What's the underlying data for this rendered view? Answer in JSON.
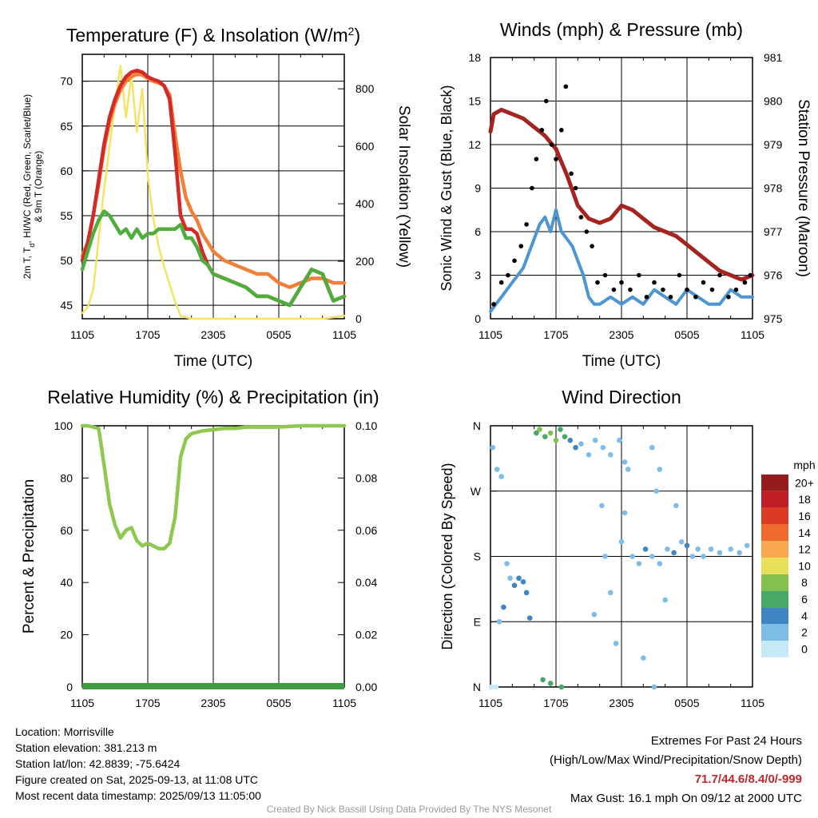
{
  "chart_data": [
    {
      "type": "line",
      "title": "Temperature (F) & Insolation (W/m2)",
      "xlabel": "Time (UTC)",
      "ylabel": "2m T, Td, HI/WC (Red, Green, Scarlet/Blue) & 9m T (Orange)",
      "y2label": "Solar Insolation (Yellow)",
      "x_ticks": [
        "1105",
        "1705",
        "2305",
        "0505",
        "1105"
      ],
      "y_ticks": [
        45,
        50,
        55,
        60,
        65,
        70
      ],
      "y2_ticks": [
        0,
        200,
        400,
        600,
        800
      ],
      "ylim": [
        43.5,
        73
      ],
      "y2lim": [
        0,
        920
      ],
      "x_hours": [
        0,
        24
      ],
      "series": [
        {
          "name": "2m T",
          "axis": "left",
          "color": "#d42a27",
          "x": [
            0,
            0.5,
            1,
            1.5,
            2,
            2.5,
            3,
            3.5,
            4,
            4.5,
            5,
            5.5,
            6,
            6.5,
            7,
            7.5,
            8,
            8.5,
            9,
            9.5,
            10,
            10.5,
            11,
            11.5,
            12,
            13,
            14,
            15,
            16,
            17,
            18,
            19,
            20,
            21,
            22,
            23,
            24
          ],
          "y": [
            50,
            52,
            55,
            59,
            63,
            66,
            68,
            69.5,
            70.5,
            71,
            71.2,
            71,
            70.5,
            70.2,
            70,
            69.5,
            68,
            62,
            55,
            53.5,
            53.5,
            53,
            51,
            49.5,
            48.5,
            48,
            47.5,
            47,
            46,
            46,
            45.5,
            45,
            47,
            49,
            48.5,
            45.5,
            46
          ]
        },
        {
          "name": "9m T",
          "axis": "left",
          "color": "#f07f3a",
          "x": [
            0,
            0.5,
            1,
            1.5,
            2,
            2.5,
            3,
            3.5,
            4,
            4.5,
            5,
            5.5,
            6,
            6.5,
            7,
            7.5,
            8,
            8.5,
            9,
            9.5,
            10,
            10.5,
            11,
            11.5,
            12,
            13,
            14,
            15,
            16,
            17,
            18,
            19,
            20,
            21,
            22,
            23,
            24
          ],
          "y": [
            50.5,
            52,
            55,
            58.5,
            62.5,
            65.5,
            67.5,
            69,
            70,
            70.5,
            70.8,
            70.7,
            70.3,
            70,
            69.8,
            69.5,
            68.5,
            64,
            60,
            57,
            55.5,
            54.5,
            53,
            52,
            51,
            50,
            49.5,
            49,
            48.5,
            48.5,
            47.5,
            47,
            47.5,
            48,
            48,
            47.5,
            47.5
          ]
        },
        {
          "name": "Td",
          "axis": "left",
          "color": "#4ead3c",
          "x": [
            0,
            0.5,
            1,
            1.5,
            2,
            2.5,
            3,
            3.5,
            4,
            4.5,
            5,
            5.5,
            6,
            6.5,
            7,
            7.5,
            8,
            8.5,
            9,
            9.5,
            10,
            10.5,
            11,
            11.5,
            12,
            13,
            14,
            15,
            16,
            17,
            18,
            19,
            20,
            21,
            22,
            23,
            24
          ],
          "y": [
            49,
            51,
            53,
            54.5,
            55.5,
            55,
            54,
            53,
            53.5,
            52.5,
            53.5,
            52.5,
            53,
            53,
            53.5,
            53.5,
            53.5,
            53.5,
            54,
            52.5,
            52.5,
            51.5,
            50,
            49.5,
            48.5,
            48,
            47.5,
            47,
            46,
            46,
            45.5,
            45,
            47,
            49,
            48.5,
            45.5,
            46
          ]
        },
        {
          "name": "Solar Insolation",
          "axis": "right",
          "color": "#f6e265",
          "x": [
            0,
            0.5,
            1,
            1.5,
            2,
            2.5,
            3,
            3.5,
            4,
            4.5,
            5,
            5.5,
            6,
            6.5,
            7,
            7.5,
            8,
            8.5,
            9,
            10,
            12,
            14,
            16,
            18,
            20,
            22,
            24
          ],
          "y": [
            20,
            40,
            100,
            280,
            450,
            600,
            750,
            880,
            700,
            850,
            650,
            800,
            500,
            350,
            250,
            180,
            120,
            60,
            10,
            0,
            0,
            0,
            0,
            0,
            0,
            0,
            10
          ]
        }
      ]
    },
    {
      "type": "scatter",
      "title": "Winds (mph) & Pressure (mb)",
      "xlabel": "Time (UTC)",
      "ylabel": "Sonic Wind & Gust (Blue, Black)",
      "y2label": "Station Pressure (Maroon)",
      "x_ticks": [
        "1105",
        "1705",
        "2305",
        "0505",
        "1105"
      ],
      "y_ticks": [
        0,
        3,
        6,
        9,
        12,
        15,
        18
      ],
      "y2_ticks": [
        975,
        976,
        977,
        978,
        979,
        980,
        981
      ],
      "ylim": [
        0,
        18
      ],
      "y2lim": [
        975,
        981
      ],
      "x_hours": [
        0,
        24
      ],
      "series": [
        {
          "name": "Sonic Wind",
          "axis": "left",
          "color": "#4d96d1",
          "x": [
            0,
            0.5,
            1,
            1.5,
            2,
            2.5,
            3,
            3.5,
            4,
            4.5,
            5,
            5.5,
            6,
            6.5,
            7,
            7.5,
            8,
            8.5,
            9,
            9.5,
            10,
            11,
            12,
            13,
            14,
            15,
            16,
            17,
            18,
            19,
            20,
            21,
            22,
            23,
            24
          ],
          "y": [
            0.5,
            1,
            1.5,
            2,
            2.5,
            3,
            3.5,
            4.5,
            5.5,
            6.5,
            7,
            6,
            7.5,
            6,
            5.5,
            5,
            4,
            3,
            1.5,
            1,
            1,
            1.5,
            1,
            1.5,
            1,
            2,
            1.5,
            1,
            2,
            1.5,
            1,
            1,
            2,
            1.5,
            1.5
          ]
        },
        {
          "name": "Gust",
          "axis": "left",
          "color": "#000000",
          "x": [
            0.3,
            1,
            1.6,
            2.2,
            2.8,
            3.3,
            3.8,
            4.2,
            4.7,
            5.1,
            5.6,
            6,
            6.5,
            6.9,
            7.4,
            7.8,
            8.3,
            8.8,
            9.3,
            9.8,
            10.5,
            11.3,
            12,
            12.8,
            13.6,
            14.3,
            15,
            15.8,
            16.5,
            17.3,
            18,
            18.8,
            19.5,
            20.3,
            21,
            21.8,
            22.5,
            23.3,
            23.8
          ],
          "y": [
            1,
            2.5,
            3,
            4,
            5,
            6.5,
            9,
            11,
            13,
            15,
            12,
            11,
            13,
            16,
            10,
            9,
            7,
            6,
            5,
            2.5,
            3,
            2,
            2.5,
            2,
            3,
            1.5,
            2.5,
            2,
            1.5,
            3,
            2,
            1.5,
            2.5,
            2,
            3,
            1.5,
            2,
            2.5,
            3
          ]
        },
        {
          "name": "Station Pressure",
          "axis": "right",
          "color": "#a52422",
          "x": [
            0,
            0.3,
            1,
            2,
            3,
            4,
            5,
            6,
            7,
            8,
            9,
            10,
            11,
            12,
            13,
            14,
            15,
            16,
            17,
            18,
            19,
            20,
            21,
            22,
            23,
            24
          ],
          "y": [
            979.3,
            979.7,
            979.8,
            979.7,
            979.6,
            979.4,
            979.2,
            978.9,
            978.3,
            977.6,
            977.3,
            977.2,
            977.3,
            977.6,
            977.5,
            977.3,
            977.1,
            977,
            976.9,
            976.7,
            976.5,
            976.3,
            976.1,
            976,
            975.9,
            976
          ]
        }
      ]
    },
    {
      "type": "line",
      "title": "Relative Humidity (%) & Precipitation (in)",
      "xlabel": "",
      "ylabel": "Percent & Precipitation",
      "x_ticks": [
        "1105",
        "1705",
        "2305",
        "0505",
        "1105"
      ],
      "y_ticks": [
        0,
        20,
        40,
        60,
        80,
        100
      ],
      "y2_ticks": [
        "0.00",
        "0.02",
        "0.04",
        "0.06",
        "0.08",
        "0.10"
      ],
      "ylim": [
        0,
        100
      ],
      "y2lim": [
        0,
        0.1
      ],
      "x_hours": [
        0,
        24
      ],
      "series": [
        {
          "name": "Relative Humidity",
          "axis": "left",
          "color": "#8ec84f",
          "x": [
            0,
            0.5,
            1.5,
            2,
            2.5,
            3,
            3.5,
            4,
            4.5,
            5,
            5.5,
            6,
            6.5,
            7,
            7.5,
            8,
            8.5,
            9,
            9.5,
            10,
            11,
            12,
            13,
            14,
            15,
            16,
            18,
            20,
            22,
            24
          ],
          "y": [
            100,
            100,
            99,
            85,
            70,
            62,
            57,
            60,
            61,
            56,
            54,
            55,
            54,
            53,
            53,
            55,
            65,
            88,
            95,
            97,
            98,
            98.5,
            99,
            99,
            99.5,
            99.5,
            99.5,
            100,
            100,
            100
          ]
        },
        {
          "name": "Precipitation",
          "axis": "right",
          "color": "#3f9c41",
          "x": [
            0,
            24
          ],
          "y": [
            0,
            0
          ]
        }
      ]
    },
    {
      "type": "scatter",
      "title": "Wind Direction",
      "ylabel": "Direction (Colored By Speed)",
      "x_ticks": [
        "1105",
        "1705",
        "2305",
        "0505",
        "1105"
      ],
      "y_ticks": [
        "N",
        "E",
        "S",
        "W",
        "N"
      ],
      "ylim": [
        0,
        360
      ],
      "x_hours": [
        0,
        24
      ],
      "colorbar_title": "mph",
      "colorbar_labels": [
        "0",
        "2",
        "4",
        "6",
        "8",
        "10",
        "12",
        "14",
        "16",
        "18",
        "20+"
      ],
      "colorbar_colors": [
        "#c6e9f8",
        "#7ebde6",
        "#3f84c3",
        "#47a867",
        "#83c24f",
        "#e8e05a",
        "#f8a84e",
        "#f06a2d",
        "#dd3a26",
        "#bf1f24",
        "#951b1c"
      ],
      "points": [
        {
          "x": 0.1,
          "y": 0,
          "speed": 0.5
        },
        {
          "x": 0.5,
          "y": 0,
          "speed": 0.5
        },
        {
          "x": 0.2,
          "y": 330,
          "speed": 1
        },
        {
          "x": 0.6,
          "y": 300,
          "speed": 1
        },
        {
          "x": 1,
          "y": 290,
          "speed": 1
        },
        {
          "x": 1.5,
          "y": 170,
          "speed": 2
        },
        {
          "x": 1.8,
          "y": 150,
          "speed": 2
        },
        {
          "x": 2.2,
          "y": 140,
          "speed": 3
        },
        {
          "x": 2.6,
          "y": 150,
          "speed": 3
        },
        {
          "x": 3,
          "y": 145,
          "speed": 3
        },
        {
          "x": 3.3,
          "y": 130,
          "speed": 4
        },
        {
          "x": 1.2,
          "y": 110,
          "speed": 3
        },
        {
          "x": 0.8,
          "y": 90,
          "speed": 2
        },
        {
          "x": 3.6,
          "y": 95,
          "speed": 4
        },
        {
          "x": 4.2,
          "y": 350,
          "speed": 5
        },
        {
          "x": 4.5,
          "y": 355,
          "speed": 7
        },
        {
          "x": 5,
          "y": 345,
          "speed": 6
        },
        {
          "x": 5.5,
          "y": 350,
          "speed": 8
        },
        {
          "x": 6,
          "y": 340,
          "speed": 7
        },
        {
          "x": 6.4,
          "y": 355,
          "speed": 6
        },
        {
          "x": 6.8,
          "y": 345,
          "speed": 5
        },
        {
          "x": 7.3,
          "y": 340,
          "speed": 4
        },
        {
          "x": 7.8,
          "y": 330,
          "speed": 3
        },
        {
          "x": 8.3,
          "y": 335,
          "speed": 2
        },
        {
          "x": 9,
          "y": 320,
          "speed": 1
        },
        {
          "x": 9.6,
          "y": 340,
          "speed": 1
        },
        {
          "x": 10.3,
          "y": 330,
          "speed": 1
        },
        {
          "x": 11,
          "y": 320,
          "speed": 1
        },
        {
          "x": 11.8,
          "y": 340,
          "speed": 1
        },
        {
          "x": 12.3,
          "y": 310,
          "speed": 1
        },
        {
          "x": 12.6,
          "y": 300,
          "speed": 1
        },
        {
          "x": 4.8,
          "y": 10,
          "speed": 5
        },
        {
          "x": 5.5,
          "y": 5,
          "speed": 5
        },
        {
          "x": 6.5,
          "y": 0,
          "speed": 6
        },
        {
          "x": 9.5,
          "y": 100,
          "speed": 1
        },
        {
          "x": 10.2,
          "y": 250,
          "speed": 1
        },
        {
          "x": 10.5,
          "y": 180,
          "speed": 1
        },
        {
          "x": 11,
          "y": 130,
          "speed": 1
        },
        {
          "x": 11.5,
          "y": 60,
          "speed": 1
        },
        {
          "x": 12,
          "y": 200,
          "speed": 1
        },
        {
          "x": 12.3,
          "y": 240,
          "speed": 1
        },
        {
          "x": 13,
          "y": 180,
          "speed": 2
        },
        {
          "x": 13.6,
          "y": 170,
          "speed": 2
        },
        {
          "x": 14.2,
          "y": 190,
          "speed": 3
        },
        {
          "x": 14.8,
          "y": 180,
          "speed": 2
        },
        {
          "x": 15.5,
          "y": 170,
          "speed": 2
        },
        {
          "x": 16.2,
          "y": 190,
          "speed": 2
        },
        {
          "x": 16.8,
          "y": 185,
          "speed": 3
        },
        {
          "x": 17.5,
          "y": 200,
          "speed": 2
        },
        {
          "x": 18,
          "y": 195,
          "speed": 3
        },
        {
          "x": 18.5,
          "y": 180,
          "speed": 2
        },
        {
          "x": 19,
          "y": 190,
          "speed": 2
        },
        {
          "x": 19.5,
          "y": 180,
          "speed": 2
        },
        {
          "x": 20.2,
          "y": 190,
          "speed": 2
        },
        {
          "x": 21,
          "y": 185,
          "speed": 2
        },
        {
          "x": 22,
          "y": 190,
          "speed": 2
        },
        {
          "x": 22.8,
          "y": 185,
          "speed": 2
        },
        {
          "x": 23.5,
          "y": 195,
          "speed": 2
        },
        {
          "x": 14,
          "y": 40,
          "speed": 1
        },
        {
          "x": 15,
          "y": 0,
          "speed": 1
        },
        {
          "x": 16,
          "y": 120,
          "speed": 1
        },
        {
          "x": 17,
          "y": 250,
          "speed": 1
        },
        {
          "x": 15.5,
          "y": 300,
          "speed": 1
        },
        {
          "x": 14.8,
          "y": 330,
          "speed": 1
        },
        {
          "x": 15.2,
          "y": 270,
          "speed": 1
        }
      ]
    }
  ],
  "footer": {
    "location": "Location: Morrisville",
    "elevation": "Station elevation: 381.213 m",
    "latlon": "Station lat/lon: 42.8839; -75.6424",
    "created": "Figure created on Sat, 2025-09-13, at 11:08 UTC",
    "recent": "Most recent data timestamp: 2025/09/13 11:05:00",
    "extremes_title": "Extremes For Past 24 Hours",
    "extremes_fields": "(High/Low/Max Wind/Precipitation/Snow Depth)",
    "extremes_values": "71.7/44.6/8.4/0/-999",
    "max_gust": "Max Gust: 16.1 mph On 09/12 at 2000 UTC",
    "credit": "Created By Nick Bassill Using Data Provided By The NYS Mesonet"
  }
}
